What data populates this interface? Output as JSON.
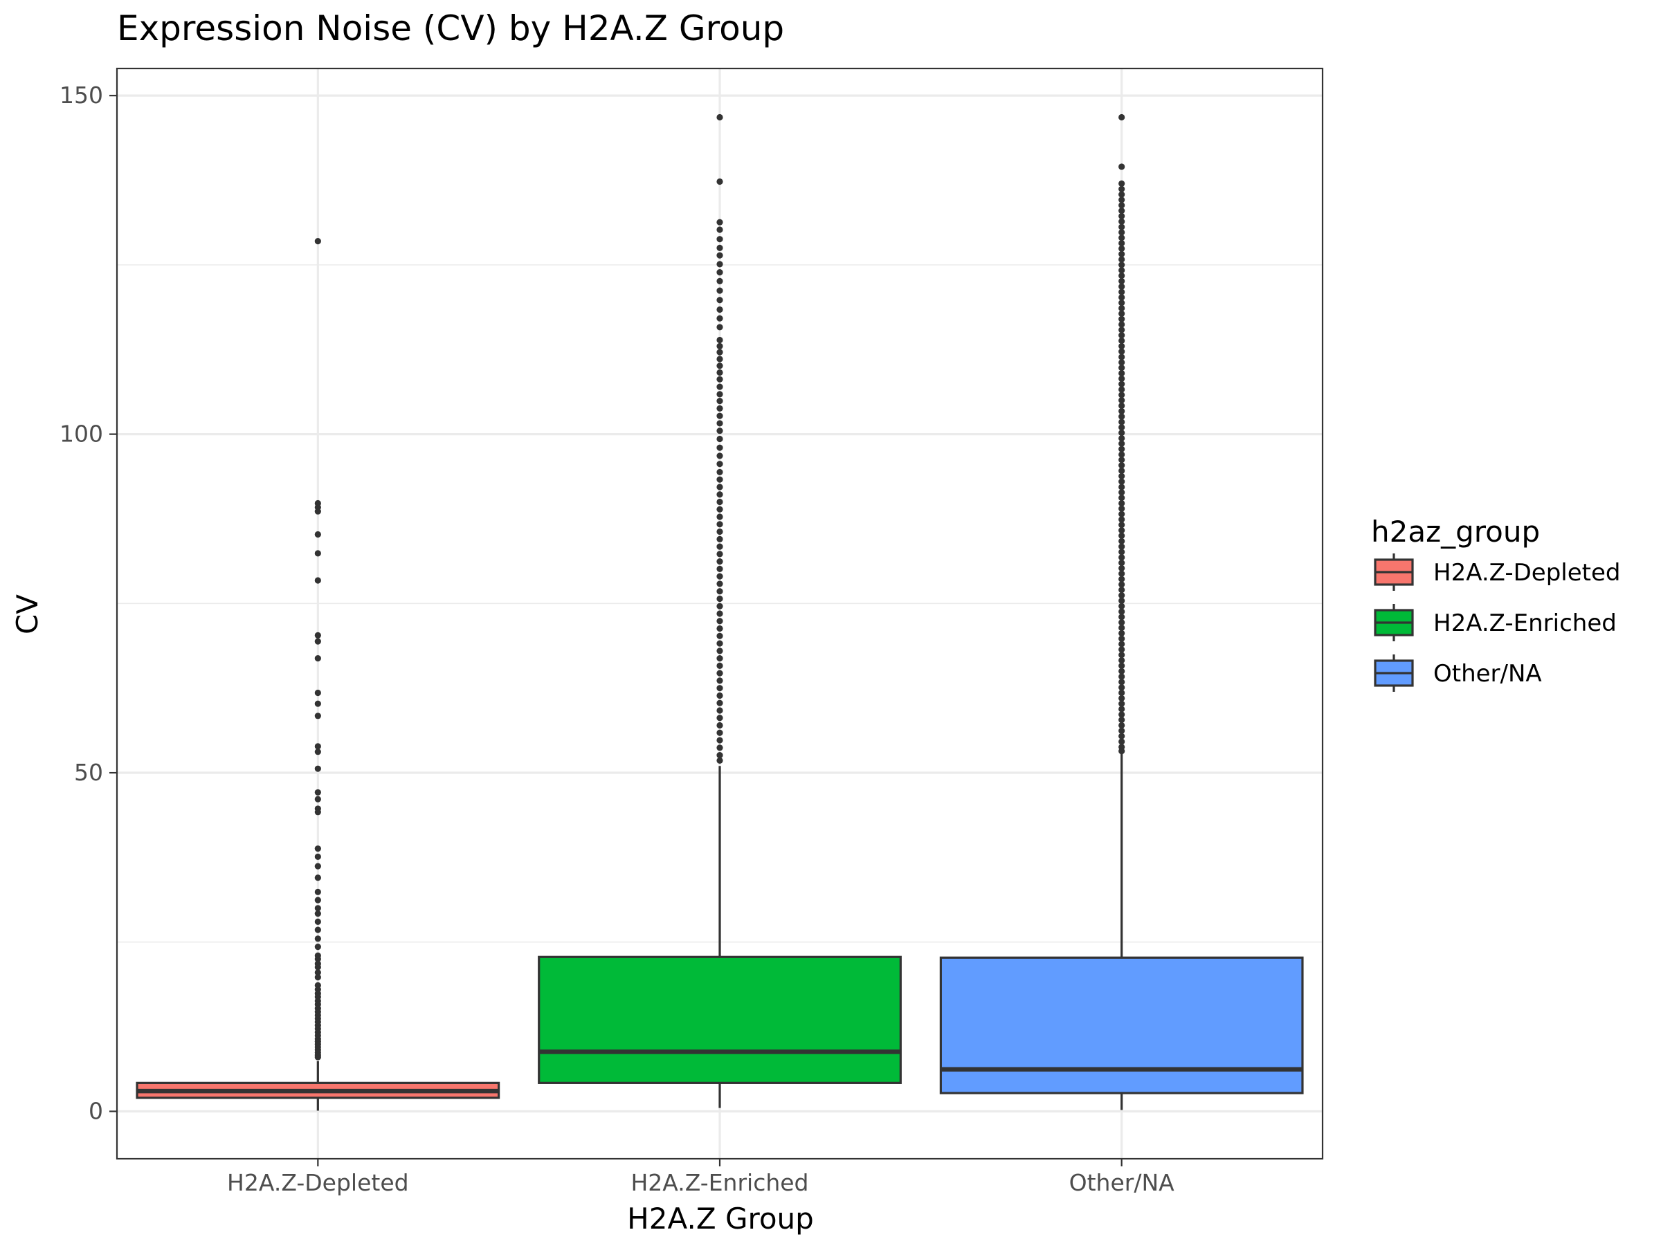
{
  "chart_data": {
    "type": "boxplot",
    "title": "Expression Noise (CV) by H2A.Z Group",
    "xlabel": "H2A.Z Group",
    "ylabel": "CV",
    "ylim": [
      -7,
      154
    ],
    "yticks": [
      0,
      50,
      100,
      150
    ],
    "y_minor": [
      25,
      75,
      125
    ],
    "grid": true,
    "legend": {
      "title": "h2az_group",
      "placement": "right"
    },
    "categories": [
      "H2A.Z-Depleted",
      "H2A.Z-Enriched",
      "Other/NA"
    ],
    "series": [
      {
        "name": "H2A.Z-Depleted",
        "color": "#F8766D",
        "min": 0.1,
        "q1": 2.0,
        "median": 3.0,
        "q3": 4.2,
        "whisker_high": 7.4,
        "outliers": [
          128.5,
          89.8,
          89.2,
          88.6,
          85.2,
          82.4,
          78.4,
          70.3,
          69.4,
          66.9,
          61.8,
          60.2,
          58.4,
          53.9,
          53.1,
          50.6,
          47.1,
          46.1,
          44.7,
          44.2,
          38.8,
          37.6,
          36.2,
          34.5,
          32.4,
          31.2,
          30.0,
          29.2,
          28.0,
          26.8,
          25.5,
          24.3,
          23.0,
          22.5,
          21.8,
          21.3,
          20.5,
          19.8,
          18.6,
          18.0,
          17.4,
          16.9,
          16.3,
          15.8,
          15.2,
          14.7,
          14.2,
          13.7,
          13.2,
          12.7,
          12.2,
          11.7,
          11.2,
          10.7,
          10.3,
          9.9,
          9.5,
          9.1,
          8.7,
          8.3,
          8.0
        ]
      },
      {
        "name": "H2A.Z-Enriched",
        "color": "#00BA38",
        "min": 0.5,
        "q1": 4.2,
        "median": 8.8,
        "q3": 22.8,
        "whisker_high": 51.0,
        "outliers": [
          146.8,
          137.3,
          131.3,
          130.2,
          128.8,
          127.5,
          126.4,
          125.1,
          123.9,
          122.6,
          121.2,
          119.8,
          118.4,
          117.1,
          115.8,
          113.9,
          113.0,
          112.1,
          111.1,
          110.1,
          109.1,
          108.1,
          107.0,
          105.9,
          104.9,
          103.8,
          102.7,
          101.6,
          100.5,
          99.3,
          98.0,
          96.8,
          95.6,
          94.4,
          93.3,
          92.2,
          91.1,
          90.0,
          88.9,
          87.8,
          86.7,
          85.6,
          84.5,
          83.4,
          82.3,
          81.2,
          80.1,
          79.0,
          77.9,
          76.8,
          75.7,
          74.6,
          73.5,
          72.4,
          71.3,
          70.2,
          69.1,
          68.0,
          66.9,
          65.8,
          64.7,
          63.6,
          62.5,
          61.4,
          60.3,
          59.2,
          58.1,
          57.0,
          55.9,
          54.8,
          53.7,
          52.6,
          51.8
        ]
      },
      {
        "name": "Other/NA",
        "color": "#619CFF",
        "min": 0.2,
        "q1": 2.7,
        "median": 6.2,
        "q3": 22.7,
        "whisker_high": 53.0,
        "outliers": [
          146.8,
          139.5,
          137.0,
          136.2,
          135.4,
          134.6,
          133.8,
          133.0,
          132.2,
          131.4,
          130.6,
          129.8,
          129.0,
          128.2,
          127.4,
          126.6,
          125.8,
          125.0,
          124.2,
          123.4,
          122.6,
          121.8,
          121.0,
          120.2,
          119.4,
          118.6,
          117.8,
          117.0,
          116.2,
          115.4,
          114.6,
          113.8,
          113.0,
          112.2,
          111.4,
          110.6,
          109.8,
          109.0,
          108.2,
          107.4,
          106.6,
          105.8,
          105.0,
          104.2,
          103.4,
          102.6,
          101.8,
          101.0,
          100.2,
          99.4,
          98.6,
          97.8,
          97.0,
          96.2,
          95.4,
          94.6,
          93.8,
          93.0,
          92.2,
          91.4,
          90.6,
          89.8,
          89.0,
          88.2,
          87.4,
          86.6,
          85.8,
          85.0,
          84.2,
          83.4,
          82.6,
          81.8,
          81.0,
          80.2,
          79.4,
          78.6,
          77.8,
          77.0,
          76.2,
          75.4,
          74.6,
          73.8,
          73.0,
          72.2,
          71.4,
          70.6,
          69.8,
          69.0,
          68.2,
          67.4,
          66.6,
          65.8,
          65.0,
          64.2,
          63.4,
          62.6,
          61.8,
          61.0,
          60.2,
          59.4,
          58.6,
          57.8,
          57.0,
          56.2,
          55.4,
          54.6,
          53.8,
          53.2
        ]
      }
    ]
  }
}
